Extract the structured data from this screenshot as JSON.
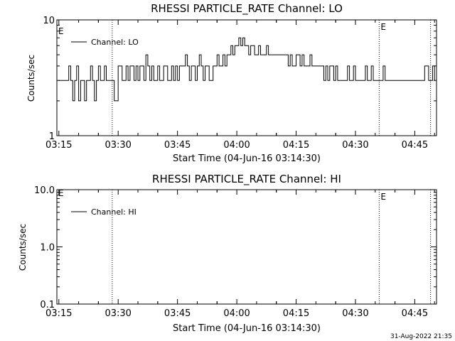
{
  "footer": {
    "timestamp": "31-Aug-2022 21:35"
  },
  "chart_data": [
    {
      "type": "line",
      "title": "RHESSI PARTICLE_RATE Channel: LO",
      "xlabel": "Start Time (04-Jun-16 03:14:30)",
      "ylabel": "Counts/sec",
      "x_ticks": [
        "03:15",
        "03:30",
        "03:45",
        "04:00",
        "04:15",
        "04:30",
        "04:45"
      ],
      "y_ticks": [
        "1",
        "10"
      ],
      "y_scale": "log",
      "ylim": [
        1,
        10
      ],
      "xlim": [
        "03:14:30",
        "04:50:30"
      ],
      "legend": "top-left",
      "event_lines": [
        {
          "time": "03:28:30",
          "label": ""
        },
        {
          "time": "04:36:00",
          "label": "E"
        },
        {
          "time": "04:49:00",
          "label": ""
        }
      ],
      "left_marker": "E",
      "series": [
        {
          "name": "Channel: LO",
          "x_minutes": [
            0,
            0.5,
            1,
            1.5,
            2,
            2.5,
            3,
            3.5,
            4,
            4.5,
            5,
            5.5,
            6,
            6.5,
            7,
            7.5,
            8,
            8.5,
            9,
            9.5,
            10,
            10.5,
            11,
            11.5,
            12,
            12.5,
            13,
            13.5,
            14,
            14.5,
            15,
            15.5,
            16,
            16.5,
            17,
            17.5,
            18,
            18.5,
            19,
            19.5,
            20,
            20.5,
            21,
            21.5,
            22,
            22.5,
            23,
            23.5,
            24,
            24.5,
            25,
            25.5,
            26,
            26.5,
            27,
            27.5,
            28,
            28.5,
            29,
            29.5,
            30,
            30.5,
            31,
            31.5,
            32,
            32.5,
            33,
            33.5,
            34,
            34.5,
            35,
            35.5,
            36,
            36.5,
            37,
            37.5,
            38,
            38.5,
            39,
            39.5,
            40,
            40.5,
            41,
            41.5,
            42,
            42.5,
            43,
            43.5,
            44,
            44.5,
            45,
            45.5,
            46,
            46.5,
            47,
            47.5,
            48,
            48.5,
            49,
            49.5,
            50,
            50.5,
            51,
            51.5,
            52,
            52.5,
            53,
            53.5,
            54,
            54.5,
            55,
            55.5,
            56,
            56.5,
            57,
            57.5,
            58,
            58.5,
            59,
            59.5,
            60,
            60.5,
            61,
            61.5,
            62,
            62.5,
            63,
            63.5,
            64,
            64.5,
            65,
            65.5,
            66,
            66.5,
            67,
            67.5,
            68,
            68.5,
            69,
            69.5,
            70,
            70.5,
            71,
            71.5,
            72,
            72.5,
            73,
            73.5,
            74,
            74.5,
            75,
            75.5,
            76,
            76.5,
            77,
            77.5,
            78,
            78.5,
            79,
            79.5,
            80,
            80.5,
            81,
            81.5,
            82,
            82.5,
            83,
            83.5,
            84,
            84.5,
            85,
            85.5,
            86,
            86.5,
            87,
            87.5,
            88,
            88.5,
            89,
            89.5,
            90,
            90.5,
            91,
            91.5,
            92,
            92.5,
            93,
            93.5,
            94,
            94.5,
            95
          ],
          "values": [
            3,
            3,
            3,
            3,
            3,
            4,
            3,
            2,
            3,
            4,
            2,
            3,
            3,
            2,
            3,
            3,
            4,
            3,
            2,
            3,
            4,
            3,
            3,
            4,
            3,
            3,
            3,
            3,
            2,
            2,
            4,
            4,
            3,
            3,
            4,
            3,
            4,
            4,
            3,
            4,
            3,
            4,
            4,
            3,
            5,
            4,
            3,
            4,
            3,
            3,
            4,
            3,
            3,
            4,
            4,
            3,
            3,
            4,
            3,
            4,
            3,
            4,
            4,
            4,
            5,
            4,
            3,
            4,
            4,
            3,
            4,
            5,
            4,
            3,
            4,
            4,
            3,
            3,
            4,
            4,
            5,
            4,
            4,
            5,
            4,
            5,
            5,
            6,
            5,
            6,
            6,
            7,
            6,
            7,
            6,
            6,
            5,
            6,
            6,
            5,
            5,
            6,
            5,
            5,
            5,
            6,
            5,
            5,
            5,
            5,
            5,
            5,
            5,
            5,
            5,
            5,
            4,
            5,
            4,
            4,
            5,
            5,
            4,
            5,
            4,
            4,
            4,
            5,
            4,
            4,
            4,
            4,
            4,
            4,
            3,
            4,
            3,
            4,
            4,
            3,
            4,
            3,
            3,
            3,
            3,
            3,
            4,
            3,
            3,
            4,
            3,
            3,
            3,
            3,
            3,
            4,
            3,
            3,
            4,
            3,
            3,
            3,
            3,
            3,
            4,
            3,
            3,
            3,
            3,
            3,
            3,
            3,
            3,
            3,
            3,
            3,
            3,
            3,
            3,
            3,
            3,
            3,
            3,
            3,
            3,
            4,
            4,
            3,
            3,
            4,
            3
          ]
        }
      ]
    },
    {
      "type": "line",
      "title": "RHESSI PARTICLE_RATE Channel: HI",
      "xlabel": "Start Time (04-Jun-16 03:14:30)",
      "ylabel": "Counts/sec",
      "x_ticks": [
        "03:15",
        "03:30",
        "03:45",
        "04:00",
        "04:15",
        "04:30",
        "04:45"
      ],
      "y_ticks": [
        "0.1",
        "1.0",
        "10.0"
      ],
      "y_scale": "log",
      "ylim": [
        0.1,
        10
      ],
      "xlim": [
        "03:14:30",
        "04:50:30"
      ],
      "legend": "top-left",
      "event_lines": [
        {
          "time": "03:28:30",
          "label": ""
        },
        {
          "time": "04:36:00",
          "label": "E"
        },
        {
          "time": "04:49:00",
          "label": ""
        }
      ],
      "left_marker": "E",
      "series": [
        {
          "name": "Channel: HI",
          "x_minutes": [],
          "values": []
        }
      ]
    }
  ]
}
